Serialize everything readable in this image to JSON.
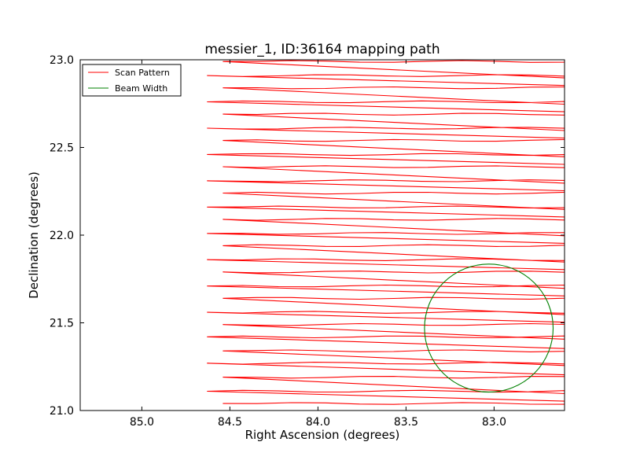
{
  "chart_data": {
    "type": "line",
    "title": "messier_1, ID:36164 mapping path",
    "xlabel": "Right Ascension (degrees)",
    "ylabel": "Declination (degrees)",
    "xlim": [
      85.35,
      82.6
    ],
    "ylim": [
      21.0,
      23.0
    ],
    "x_inverted": true,
    "xticks": [
      85.0,
      84.5,
      84.0,
      83.5,
      83.0
    ],
    "xtick_labels": [
      "85.0",
      "84.5",
      "84.0",
      "83.5",
      "83.0"
    ],
    "yticks": [
      21.0,
      21.5,
      22.0,
      22.5,
      23.0
    ],
    "ytick_labels": [
      "21.0",
      "21.5",
      "22.0",
      "22.5",
      "23.0"
    ],
    "grid": false,
    "legend": {
      "placement": "top-left",
      "entries": [
        {
          "label": "Scan Pattern",
          "color": "#ff0000"
        },
        {
          "label": "Beam Width",
          "color": "#008000"
        }
      ]
    },
    "scan_pattern": {
      "color": "#ff0000",
      "ra_west": 82.6,
      "ra_east_low": 84.54,
      "ra_east_high": 84.63,
      "dec_levels": [
        21.04,
        21.11,
        21.19,
        21.27,
        21.34,
        21.42,
        21.49,
        21.56,
        21.64,
        21.71,
        21.79,
        21.86,
        21.94,
        22.01,
        22.09,
        22.16,
        22.24,
        22.31,
        22.39,
        22.46,
        22.54,
        22.61,
        22.69,
        22.76,
        22.84,
        22.91,
        22.99
      ]
    },
    "beam_width": {
      "color": "#008000",
      "center_ra": 83.03,
      "center_dec": 21.47,
      "radius_deg": 0.365
    }
  }
}
